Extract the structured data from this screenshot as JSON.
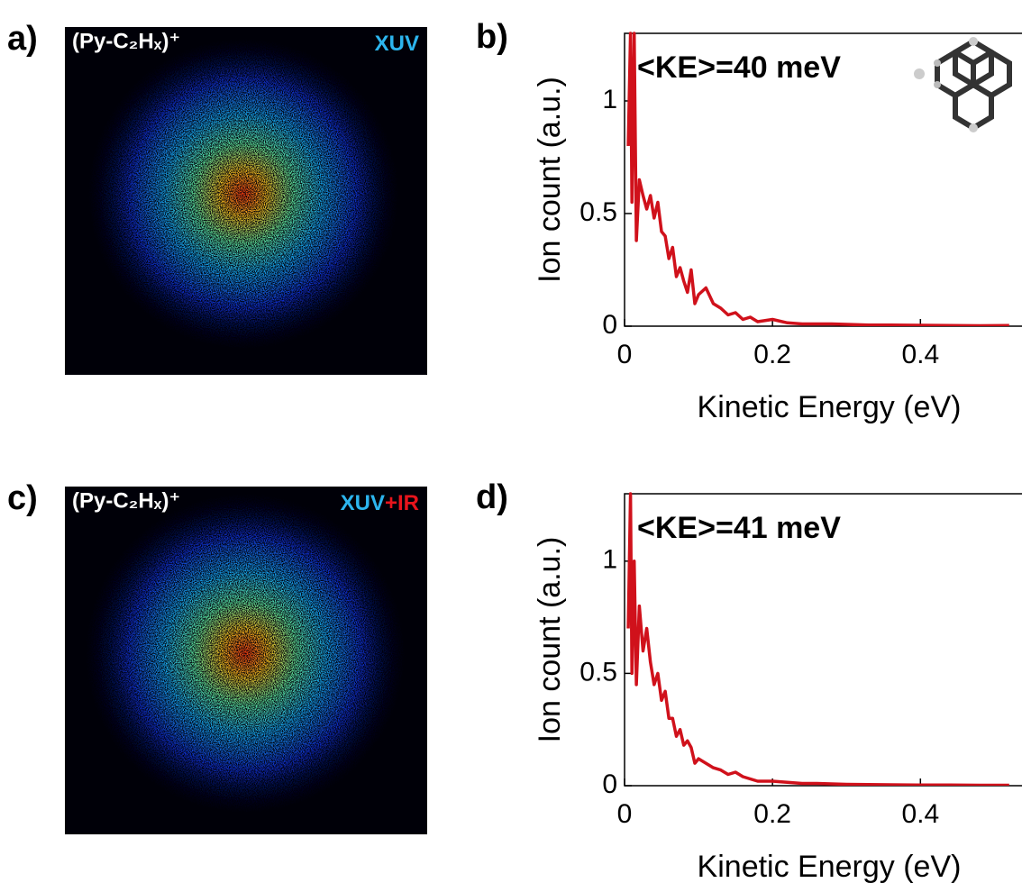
{
  "images": [
    {
      "panel_label": "a)",
      "title": "(Py-C₂Hₓ)⁺",
      "probe": [
        {
          "text": "XUV",
          "color": "#2cb5ee"
        }
      ]
    },
    {
      "panel_label": "c)",
      "title": "(Py-C₂Hₓ)⁺",
      "probe": [
        {
          "text": "XUV",
          "color": "#2cb5ee"
        },
        {
          "text": "+IR",
          "color": "#e8141c"
        }
      ]
    }
  ],
  "chart_data": [
    {
      "type": "line",
      "panel_label": "b)",
      "annotation": "<KE>=40 meV",
      "xlabel": "Kinetic Energy (eV)",
      "ylabel": "Ion count (a.u.)",
      "color": "#d0111b",
      "x": [
        0.005,
        0.008,
        0.01,
        0.013,
        0.016,
        0.02,
        0.025,
        0.03,
        0.035,
        0.04,
        0.045,
        0.05,
        0.055,
        0.06,
        0.065,
        0.07,
        0.075,
        0.08,
        0.085,
        0.09,
        0.095,
        0.1,
        0.11,
        0.12,
        0.13,
        0.14,
        0.15,
        0.16,
        0.17,
        0.18,
        0.2,
        0.22,
        0.24,
        0.26,
        0.28,
        0.3,
        0.33,
        0.36,
        0.4,
        0.44,
        0.48,
        0.52
      ],
      "values": [
        0.8,
        1.3,
        0.55,
        1.3,
        0.38,
        0.65,
        0.58,
        0.52,
        0.58,
        0.48,
        0.55,
        0.42,
        0.4,
        0.3,
        0.35,
        0.22,
        0.26,
        0.2,
        0.15,
        0.25,
        0.1,
        0.14,
        0.17,
        0.1,
        0.08,
        0.05,
        0.06,
        0.03,
        0.04,
        0.02,
        0.03,
        0.015,
        0.01,
        0.01,
        0.01,
        0.008,
        0.005,
        0.005,
        0.004,
        0.003,
        0.002,
        0.003
      ],
      "xlim": [
        0,
        0.53
      ],
      "ylim": [
        0,
        1.3
      ],
      "xticks": [
        0,
        0.2,
        0.4
      ],
      "yticks": [
        0,
        0.5,
        1
      ]
    },
    {
      "type": "line",
      "panel_label": "d)",
      "annotation": "<KE>=41 meV",
      "xlabel": "Kinetic Energy (eV)",
      "ylabel": "Ion count (a.u.)",
      "color": "#d0111b",
      "x": [
        0.005,
        0.008,
        0.01,
        0.013,
        0.016,
        0.02,
        0.025,
        0.03,
        0.035,
        0.04,
        0.045,
        0.05,
        0.055,
        0.06,
        0.065,
        0.07,
        0.075,
        0.08,
        0.085,
        0.09,
        0.095,
        0.1,
        0.11,
        0.12,
        0.13,
        0.14,
        0.15,
        0.16,
        0.17,
        0.18,
        0.2,
        0.22,
        0.24,
        0.26,
        0.28,
        0.3,
        0.33,
        0.36,
        0.4,
        0.44,
        0.48,
        0.52
      ],
      "values": [
        0.7,
        1.3,
        0.5,
        1.0,
        0.45,
        0.8,
        0.6,
        0.7,
        0.55,
        0.45,
        0.5,
        0.38,
        0.42,
        0.3,
        0.3,
        0.22,
        0.25,
        0.18,
        0.2,
        0.17,
        0.1,
        0.12,
        0.1,
        0.08,
        0.07,
        0.05,
        0.06,
        0.04,
        0.03,
        0.02,
        0.02,
        0.015,
        0.01,
        0.01,
        0.008,
        0.006,
        0.005,
        0.004,
        0.003,
        0.003,
        0.002,
        0.002
      ],
      "xlim": [
        0,
        0.53
      ],
      "ylim": [
        0,
        1.3
      ],
      "xticks": [
        0,
        0.2,
        0.4
      ],
      "yticks": [
        0,
        0.5,
        1
      ]
    }
  ]
}
